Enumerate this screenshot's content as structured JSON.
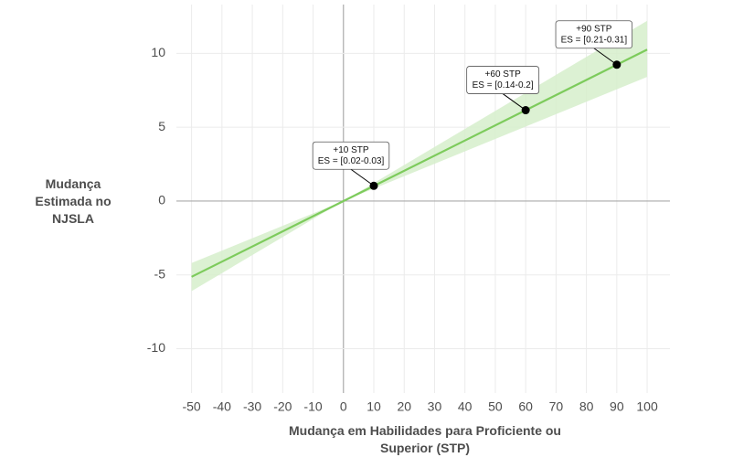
{
  "chart_data": {
    "type": "line",
    "x_label": "Mudança em Habilidades para Proficiente ou Superior (STP)",
    "y_label": "Mudança Estimada no NJSLA",
    "xlim": [
      -55,
      107.5
    ],
    "ylim": [
      -13,
      13.3
    ],
    "xticks": [
      -50,
      -40,
      -30,
      -20,
      -10,
      0,
      10,
      20,
      30,
      40,
      50,
      60,
      70,
      80,
      90,
      100
    ],
    "yticks": [
      -10,
      -5,
      0,
      5,
      10
    ],
    "grid": true,
    "line": {
      "color": "#7dcb5c",
      "x": [
        -50,
        100
      ],
      "values": [
        -5.13,
        10.25
      ]
    },
    "band": {
      "color": "#d6efcb",
      "x": [
        -50,
        0,
        100
      ],
      "lower": [
        -6.1,
        0,
        8.4
      ],
      "upper": [
        -4.2,
        0,
        12.2
      ]
    },
    "points": {
      "color": "#000000",
      "x": [
        10,
        60,
        90
      ],
      "values": [
        1.03,
        6.15,
        9.23
      ],
      "labels": [
        "+10 STP",
        "+60 STP",
        "+90 STP"
      ],
      "sublabels": [
        "ES = [0.02-0.03]",
        "ES = [0.14-0.2]",
        "ES = [0.21-0.31]"
      ]
    }
  }
}
